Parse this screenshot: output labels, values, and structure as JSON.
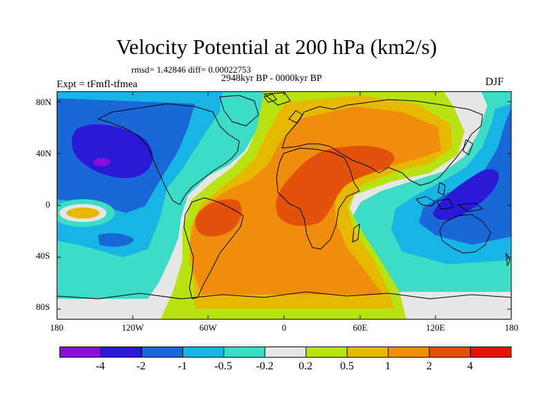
{
  "title": "Velocity Potential at 200 hPa (km2/s)",
  "stats": "rmsd= 1.42846 diff= 0.00022753",
  "period": "2948kyr BP - 0000kyr BP",
  "experiment": "Expt = tFmfl-tfmea",
  "season": "DJF",
  "lat_labels": [
    "80N",
    "40N",
    "0",
    "40S",
    "80S"
  ],
  "lon_labels": [
    "180",
    "120W",
    "60W",
    "0",
    "60E",
    "120E",
    "180"
  ],
  "colorbar": {
    "labels": [
      "-4",
      "-2",
      "-1",
      "-0.5",
      "-0.2",
      "0.2",
      "0.5",
      "1",
      "2",
      "4"
    ],
    "colors": [
      "#8a10d8",
      "#2a1ad8",
      "#1a68d8",
      "#19b4e6",
      "#3cdcc6",
      "#e6e6e6",
      "#b8e212",
      "#e6b800",
      "#f08d0c",
      "#e2520b",
      "#e6130a"
    ]
  }
}
